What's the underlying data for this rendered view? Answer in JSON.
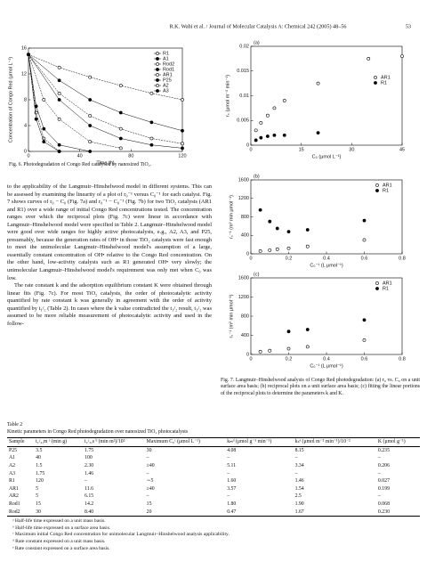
{
  "header": {
    "running_title": "R.K. Wahi et al. / Journal of Molecular Catalysis A: Chemical 242 (2005) 48–56",
    "page_number": "53"
  },
  "figure6": {
    "caption": "Fig. 6. Photodegradation of Congo Red catalysed by nanosized TiO₂.",
    "panels": [
      {
        "xlabel": "Time (h)",
        "ylabel": "Concentration of Congo Red (μmol L⁻¹)",
        "xlim": [
          0,
          120
        ],
        "ylim": [
          0,
          16
        ],
        "xticks": [
          0,
          40,
          80,
          120
        ],
        "yticks": [
          0,
          4,
          8,
          12,
          16
        ],
        "lines": true,
        "legend": "upper right",
        "series": [
          {
            "name": "R1",
            "color": "#000",
            "filled": false,
            "x": [
              0,
              24,
              48,
              72,
              96,
              120
            ],
            "values": [
              15,
              13,
              11.5,
              10.2,
              9,
              8
            ]
          },
          {
            "name": "A1",
            "color": "#000",
            "filled": true,
            "x": [
              0,
              24,
              48,
              72,
              96,
              120
            ],
            "values": [
              15,
              11,
              8,
              6,
              4.5,
              3.2
            ]
          },
          {
            "name": "Rod2",
            "color": "#000",
            "filled": false,
            "x": [
              0,
              24,
              48,
              72,
              96,
              120
            ],
            "values": [
              15,
              9,
              5.5,
              3.5,
              2,
              1.2
            ]
          },
          {
            "name": "Rod1",
            "color": "#000",
            "filled": true,
            "x": [
              0,
              24,
              48,
              72,
              96,
              120
            ],
            "values": [
              15,
              8,
              4,
              2,
              1,
              0.5
            ]
          },
          {
            "name": "AR1",
            "color": "#000",
            "filled": false,
            "x": [
              0,
              12,
              24,
              48,
              72
            ],
            "values": [
              15,
              8,
              5,
              1.5,
              0.5
            ]
          },
          {
            "name": "P25",
            "color": "#000",
            "filled": true,
            "x": [
              0,
              6,
              12,
              24,
              48
            ],
            "values": [
              15,
              7,
              3.5,
              1,
              0
            ]
          },
          {
            "name": "A2",
            "color": "#000",
            "filled": false,
            "x": [
              0,
              6,
              12,
              24
            ],
            "values": [
              15,
              6,
              2,
              0
            ]
          },
          {
            "name": "A3",
            "color": "#000",
            "filled": true,
            "x": [
              0,
              6,
              12,
              24
            ],
            "values": [
              15,
              5,
              1.5,
              0
            ]
          }
        ]
      }
    ]
  },
  "figure7": {
    "caption": "Fig. 7. Langmuir–Hinshelwood analysis of Congo Red photodegradation: (a) r₀ vs. C₀ on a unit surface area basis; (b) reciprocal plots on a unit surface area basis; (c) fitting the linear portions of the reciprocal plots to determine the parameters k and K.",
    "panels": [
      {
        "label": "(a)",
        "xlabel": "C₀ (μmol L⁻¹)",
        "ylabel": "rₛ (μmol m⁻² min⁻¹)",
        "xlim": [
          0,
          45
        ],
        "ylim": [
          0,
          0.02
        ],
        "xticks": [
          0,
          15,
          30,
          45
        ],
        "yticks": [
          0,
          0.005,
          0.01,
          0.015,
          0.02
        ],
        "lines": false,
        "legend": "right",
        "series": [
          {
            "name": "AR1",
            "color": "#000",
            "filled": false,
            "x": [
              1.5,
              3,
              5,
              7,
              10,
              20,
              35,
              45
            ],
            "values": [
              0.003,
              0.0045,
              0.006,
              0.0075,
              0.009,
              0.0125,
              0.0175,
              0.018
            ]
          },
          {
            "name": "R1",
            "color": "#000",
            "filled": true,
            "x": [
              1.5,
              3,
              5,
              7,
              10,
              20
            ],
            "values": [
              0.001,
              0.0015,
              0.0018,
              0.002,
              0.002,
              0.0025
            ]
          }
        ]
      },
      {
        "label": "(b)",
        "xlabel": "C₀⁻¹ (L μmol⁻¹)",
        "ylabel": "rₛ⁻¹ (m² min μmol⁻¹)",
        "xlim": [
          0,
          0.8
        ],
        "ylim": [
          0,
          1600
        ],
        "xticks": [
          0,
          0.2,
          0.4,
          0.6,
          0.8
        ],
        "yticks": [
          0,
          400,
          800,
          1200,
          1600
        ],
        "lines": false,
        "legend": "upper right",
        "series": [
          {
            "name": "AR1",
            "color": "#000",
            "filled": false,
            "x": [
              0.05,
              0.1,
              0.14,
              0.2,
              0.3,
              0.6
            ],
            "values": [
              60,
              80,
              100,
              120,
              160,
              300
            ]
          },
          {
            "name": "R1",
            "color": "#000",
            "filled": true,
            "x": [
              0.05,
              0.1,
              0.14,
              0.2,
              0.3,
              0.6
            ],
            "values": [
              950,
              700,
              550,
              480,
              520,
              720
            ]
          }
        ]
      },
      {
        "label": "(c)",
        "xlabel": "C₀⁻¹ (L μmol⁻¹)",
        "ylabel": "rₛ⁻¹ (m² min μmol⁻¹)",
        "xlim": [
          0,
          0.8
        ],
        "ylim": [
          0,
          1600
        ],
        "xticks": [
          0,
          0.2,
          0.4,
          0.6,
          0.8
        ],
        "yticks": [
          0,
          400,
          800,
          1200,
          1600
        ],
        "lines": false,
        "legend": "upper right",
        "series": [
          {
            "name": "AR1",
            "color": "#000",
            "filled": false,
            "x": [
              0.05,
              0.1,
              0.2,
              0.3,
              0.6
            ],
            "values": [
              60,
              80,
              120,
              160,
              300
            ]
          },
          {
            "name": "R1",
            "color": "#000",
            "filled": true,
            "x": [
              0.2,
              0.3,
              0.6
            ],
            "values": [
              480,
              520,
              720
            ]
          }
        ]
      }
    ]
  },
  "body": {
    "paragraphs": [
      "to the applicability of the Langmuir–Hinshelwood model in different systems. This can be assessed by examining the linearity of a plot of r₀⁻¹ versus C₀⁻¹ for each catalyst. Fig. 7 shows curves of r₀ − C₀ (Fig. 7a) and r₀⁻¹ − C₀⁻¹ (Fig. 7b) for two TiO₂ catalysts (AR1 and R1) over a wide range of initial Congo Red concentrations tested. The concentration ranges over which the reciprocal plots (Fig. 7c) were linear in accordance with Langmuir–Hinshelwood model were specified in Table 2. Langmuir–Hinshelwood model were good over wide ranges for highly active photocatalysts, e.g., A2, A3, and P25, presumably, because the generation rates of OH• in those TiO₂ catalysts were fast enough to meet the unimolecular Langmuir–Hinshelwood model's assumption of a large, essentially constant concentration of OH• relative to the Congo Red concentration. On the other hand, low-activity catalysts such as R1 generated OH• very slowly; the unimolecular Langmuir–Hinshelwood model's requirement was only met when C₀ was low.",
      "The rate constant k and the adsorption equilibrium constant K were obtained through linear fits (Fig. 7c). For most TiO₂ catalysts, the order of photocatalytic activity quantified by rate constant k was generally in agreement with the order of activity quantified by t₁/₂ (Table 2). In cases where the k value contradicted the t₁/₂ result, t₁/₂ was assumed to be more reliable measurement of photocatalytic activity and used in the follow-"
    ]
  },
  "table": {
    "label": "Table 2",
    "caption": "Kinetic parameters in Congo Red photodegradation over nanosized TiO₂ photocatalysts",
    "header": [
      "Sample",
      "t₁/₂,m ᵃ (min g)",
      "t₁/₂,s ᵇ (min m²)/10²",
      "Maximum C₀ᶜ (μmol L⁻¹)",
      "kₘᵈ (μmol g⁻¹ min⁻¹)",
      "kₛᵉ (μmol m⁻² min⁻¹)/10⁻²",
      "K (μmol g⁻¹)"
    ],
    "rows": [
      [
        "P25",
        "3.5",
        "1.75",
        "30",
        "4.08",
        "8.15",
        "0.235"
      ],
      [
        "A1",
        "40",
        "100",
        "–",
        "–",
        "–",
        "–"
      ],
      [
        "A2",
        "1.5",
        "2.30",
        "≥40",
        "5.11",
        "3.34",
        "0.206"
      ],
      [
        "A3",
        "1.75",
        "1.46",
        "–",
        "–",
        "–",
        "–"
      ],
      [
        "R1",
        "120",
        "–",
        "∼5",
        "1.60",
        "1.46",
        "0.027"
      ],
      [
        "AR1",
        "5",
        "11.6",
        "≥40",
        "3.57",
        "1.54",
        "0.199"
      ],
      [
        "AR2",
        "5",
        "6.15",
        "–",
        "–",
        "2.5",
        "–"
      ],
      [
        "Rod1",
        "15",
        "14.2",
        "15",
        "1.80",
        "1.90",
        "0.068"
      ],
      [
        "Rod2",
        "30",
        "8.40",
        "20",
        "0.47",
        "1.67",
        "0.230"
      ]
    ],
    "footnotes": [
      "ᵃ Half-life time expressed on a unit mass basis.",
      "ᵇ Half-life time expressed on a surface area basis.",
      "ᶜ Maximum initial Congo Red concentration for unimolecular Langmuir–Hinshelwood analysis applicability.",
      "ᵈ Rate constant expressed on a unit mass basis.",
      "ᵉ Rate constant expressed on a surface area basis."
    ]
  }
}
